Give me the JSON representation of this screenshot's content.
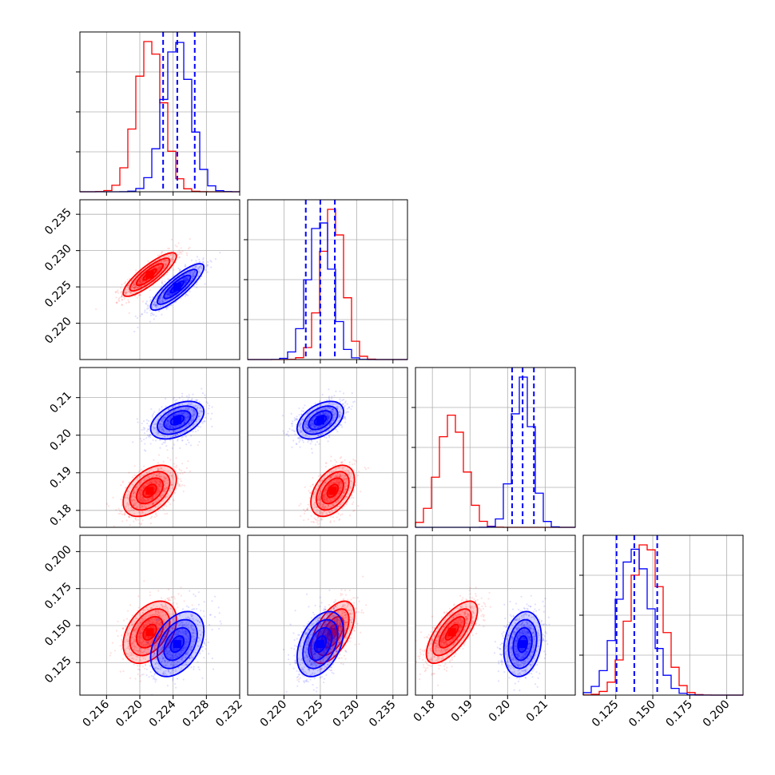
{
  "chart_data": {
    "type": "corner",
    "title": "",
    "grid": true,
    "colors": {
      "red": "#ff0000",
      "blue": "#0000ff",
      "quantile": "#0000ff"
    },
    "series": [
      {
        "color": "red",
        "mean": [
          0.2212,
          0.2267,
          0.1852,
          0.1455
        ],
        "sd": [
          0.0016,
          0.0015,
          0.0034,
          0.0105
        ],
        "corr": [
          [
            1.0,
            0.85,
            0.45,
            0.4
          ],
          [
            0.85,
            1.0,
            0.45,
            0.55
          ],
          [
            0.45,
            0.45,
            1.0,
            0.7
          ],
          [
            0.4,
            0.55,
            0.7,
            1.0
          ]
        ]
      },
      {
        "color": "blue",
        "mean": [
          0.2245,
          0.225,
          0.204,
          0.1375
        ],
        "sd": [
          0.0016,
          0.0016,
          0.0025,
          0.011
        ],
        "corr": [
          [
            1.0,
            0.85,
            0.45,
            0.4
          ],
          [
            0.85,
            1.0,
            0.45,
            0.4
          ],
          [
            0.45,
            0.45,
            1.0,
            0.2
          ],
          [
            0.4,
            0.4,
            0.2,
            1.0
          ]
        ],
        "quantiles": [
          [
            0.2228,
            0.2245,
            0.2266
          ],
          [
            0.223,
            0.225,
            0.227
          ],
          [
            0.2012,
            0.204,
            0.207
          ],
          [
            0.1255,
            0.1375,
            0.153
          ]
        ]
      }
    ],
    "axes": [
      {
        "range": [
          0.2128,
          0.232
        ],
        "ticks": [
          0.216,
          0.22,
          0.224,
          0.228,
          0.232
        ],
        "tick_labels": [
          "0.216",
          "0.220",
          "0.224",
          "0.228",
          "0.232"
        ]
      },
      {
        "range": [
          0.215,
          0.237
        ],
        "ticks": [
          0.22,
          0.225,
          0.23,
          0.235
        ],
        "tick_labels": [
          "0.220",
          "0.225",
          "0.230",
          "0.235"
        ]
      },
      {
        "range": [
          0.1755,
          0.218
        ],
        "ticks": [
          0.18,
          0.19,
          0.2,
          0.21
        ],
        "tick_labels": [
          "0.18",
          "0.19",
          "0.20",
          "0.21"
        ]
      },
      {
        "range": [
          0.103,
          0.211
        ],
        "ticks": [
          0.125,
          0.15,
          0.175,
          0.2
        ],
        "tick_labels": [
          "0.125",
          "0.150",
          "0.175",
          "0.200"
        ]
      }
    ],
    "histogram": {
      "bins": 20
    },
    "contour_levels_sigma": [
      0.5,
      1.0,
      1.5,
      2.0
    ],
    "scatter_points_per_series": 900
  }
}
